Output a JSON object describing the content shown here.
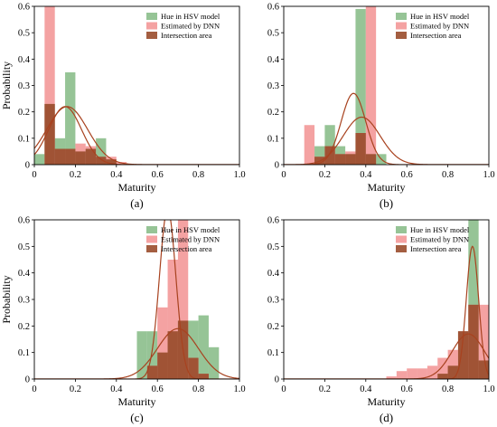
{
  "colors": {
    "hue": "#6aab6a",
    "dnn": "#ef7a7a",
    "intersection": "#9a4c2c",
    "curve": "#a8421f"
  },
  "legend": {
    "hue": "Hue in HSV model",
    "dnn": "Estimated by DNN",
    "intersection": "Intersection area"
  },
  "chart_data": [
    {
      "type": "bar",
      "caption": "(a)",
      "xlabel": "Maturity",
      "ylabel": "Probability",
      "xlim": [
        0,
        1
      ],
      "ylim": [
        0,
        0.6
      ],
      "xticks": [
        "0",
        "0.2",
        "0.4",
        "0.6",
        "0.8",
        "1.0"
      ],
      "yticks": [
        "0",
        "0.1",
        "0.2",
        "0.3",
        "0.4",
        "0.5",
        "0.6"
      ],
      "bin_width": 0.05,
      "bin_starts": [
        0.0,
        0.05,
        0.1,
        0.15,
        0.2,
        0.25,
        0.3,
        0.35,
        0.4
      ],
      "series": [
        {
          "name": "Hue in HSV model",
          "values": [
            0.04,
            0.23,
            0.1,
            0.35,
            0.05,
            0.06,
            0.1,
            0.02,
            0.0
          ]
        },
        {
          "name": "Estimated by DNN",
          "values": [
            0.0,
            0.6,
            0.06,
            0.06,
            0.08,
            0.07,
            0.03,
            0.03,
            0.01
          ]
        }
      ],
      "fits": [
        {
          "mean": 0.15,
          "std": 0.08,
          "peak": 0.22
        },
        {
          "mean": 0.16,
          "std": 0.1,
          "peak": 0.22
        }
      ]
    },
    {
      "type": "bar",
      "caption": "(b)",
      "xlabel": "Maturity",
      "ylabel": "",
      "xlim": [
        0,
        1
      ],
      "ylim": [
        0,
        0.6
      ],
      "xticks": [
        "0",
        "0.2",
        "0.4",
        "0.6",
        "0.8",
        "1.0"
      ],
      "yticks": [
        "0",
        "0.1",
        "0.2",
        "0.3",
        "0.4",
        "0.5",
        "0.6"
      ],
      "bin_width": 0.05,
      "bin_starts": [
        0.1,
        0.15,
        0.2,
        0.25,
        0.3,
        0.35,
        0.4,
        0.45
      ],
      "series": [
        {
          "name": "Hue in HSV model",
          "values": [
            0.0,
            0.07,
            0.15,
            0.07,
            0.04,
            0.59,
            0.04,
            0.04
          ]
        },
        {
          "name": "Estimated by DNN",
          "values": [
            0.15,
            0.03,
            0.07,
            0.04,
            0.05,
            0.12,
            0.6,
            0.0
          ]
        }
      ],
      "fits": [
        {
          "mean": 0.34,
          "std": 0.06,
          "peak": 0.27
        },
        {
          "mean": 0.38,
          "std": 0.09,
          "peak": 0.18
        }
      ]
    },
    {
      "type": "bar",
      "caption": "(c)",
      "xlabel": "Maturity",
      "ylabel": "Probability",
      "xlim": [
        0,
        1
      ],
      "ylim": [
        0,
        0.6
      ],
      "xticks": [
        "0",
        "0.2",
        "0.4",
        "0.6",
        "0.8",
        "1.0"
      ],
      "yticks": [
        "0",
        "0.1",
        "0.2",
        "0.3",
        "0.4",
        "0.5",
        "0.6"
      ],
      "bin_width": 0.05,
      "bin_starts": [
        0.5,
        0.55,
        0.6,
        0.65,
        0.7,
        0.75,
        0.8,
        0.85
      ],
      "series": [
        {
          "name": "Hue in HSV model",
          "values": [
            0.18,
            0.18,
            0.1,
            0.18,
            0.22,
            0.22,
            0.24,
            0.12
          ]
        },
        {
          "name": "Estimated by DNN",
          "values": [
            0.0,
            0.05,
            0.27,
            0.45,
            0.6,
            0.08,
            0.02,
            0.0
          ]
        }
      ],
      "fits": [
        {
          "mean": 0.65,
          "std": 0.04,
          "peak": 0.64
        },
        {
          "mean": 0.7,
          "std": 0.1,
          "peak": 0.19
        }
      ]
    },
    {
      "type": "bar",
      "caption": "(d)",
      "xlabel": "Maturity",
      "ylabel": "",
      "xlim": [
        0,
        1
      ],
      "ylim": [
        0,
        0.6
      ],
      "xticks": [
        "0",
        "0.2",
        "0.4",
        "0.6",
        "0.8",
        "1.0"
      ],
      "yticks": [
        "0",
        "0.1",
        "0.2",
        "0.3",
        "0.4",
        "0.5",
        "0.6"
      ],
      "bin_width": 0.05,
      "bin_starts": [
        0.5,
        0.55,
        0.6,
        0.65,
        0.7,
        0.75,
        0.8,
        0.85,
        0.9,
        0.95
      ],
      "series": [
        {
          "name": "Hue in HSV model",
          "values": [
            0.0,
            0.0,
            0.0,
            0.0,
            0.0,
            0.02,
            0.05,
            0.18,
            0.6,
            0.07
          ]
        },
        {
          "name": "Estimated by DNN",
          "values": [
            0.01,
            0.03,
            0.04,
            0.04,
            0.05,
            0.08,
            0.11,
            0.18,
            0.28,
            0.28
          ]
        }
      ],
      "fits": [
        {
          "mean": 0.92,
          "std": 0.03,
          "peak": 0.5
        },
        {
          "mean": 0.9,
          "std": 0.08,
          "peak": 0.17
        }
      ]
    }
  ]
}
